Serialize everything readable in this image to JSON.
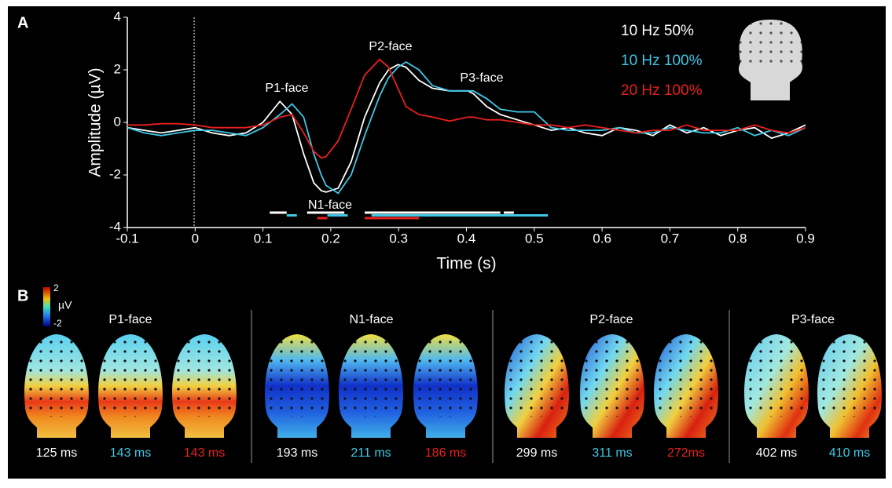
{
  "panel_a_label": "A",
  "chart_data": {
    "type": "line",
    "x_label": "Time (s)",
    "y_label": "Amplitude (µV)",
    "xlim": [
      -0.1,
      0.9
    ],
    "ylim": [
      -4,
      4
    ],
    "xticks": [
      -0.1,
      0,
      0.1,
      0.2,
      0.3,
      0.4,
      0.5,
      0.6,
      0.7,
      0.8,
      0.9
    ],
    "yticks": [
      -4,
      -2,
      0,
      2,
      4
    ],
    "annotations": [
      "P1-face",
      "N1-face",
      "P2-face",
      "P3-face"
    ],
    "x": [
      -0.1,
      -0.075,
      -0.05,
      -0.025,
      0,
      0.025,
      0.05,
      0.075,
      0.1,
      0.125,
      0.143,
      0.16,
      0.175,
      0.186,
      0.193,
      0.211,
      0.23,
      0.25,
      0.272,
      0.285,
      0.299,
      0.311,
      0.33,
      0.35,
      0.375,
      0.402,
      0.41,
      0.43,
      0.45,
      0.475,
      0.5,
      0.525,
      0.55,
      0.575,
      0.6,
      0.625,
      0.65,
      0.675,
      0.7,
      0.725,
      0.75,
      0.775,
      0.8,
      0.825,
      0.85,
      0.875,
      0.9
    ],
    "series": [
      {
        "name": "10 Hz 50%",
        "color": "#ffffff",
        "values": [
          -0.2,
          -0.3,
          -0.4,
          -0.3,
          -0.2,
          -0.4,
          -0.5,
          -0.4,
          0.0,
          0.8,
          0.3,
          -1.2,
          -2.3,
          -2.6,
          -2.65,
          -2.5,
          -1.5,
          0.2,
          1.5,
          2.0,
          2.2,
          2.1,
          1.6,
          1.3,
          1.2,
          1.2,
          1.1,
          0.6,
          0.3,
          0.1,
          -0.1,
          -0.3,
          -0.2,
          -0.4,
          -0.5,
          -0.2,
          -0.3,
          -0.5,
          -0.1,
          -0.4,
          -0.2,
          -0.5,
          -0.3,
          -0.2,
          -0.6,
          -0.4,
          -0.1
        ],
        "intervals": [
          [
            0.11,
            0.135
          ],
          [
            0.165,
            0.22
          ],
          [
            0.25,
            0.45
          ],
          [
            0.455,
            0.47
          ]
        ]
      },
      {
        "name": "10 Hz 100%",
        "color": "#3fc8e6",
        "values": [
          -0.2,
          -0.4,
          -0.5,
          -0.4,
          -0.3,
          -0.3,
          -0.4,
          -0.5,
          -0.2,
          0.3,
          0.7,
          0.2,
          -1.2,
          -2.0,
          -2.4,
          -2.7,
          -2.0,
          -0.5,
          1.0,
          1.7,
          2.1,
          2.3,
          2.0,
          1.4,
          1.2,
          1.2,
          1.2,
          0.9,
          0.5,
          0.4,
          0.4,
          -0.2,
          -0.3,
          -0.3,
          -0.3,
          -0.2,
          -0.4,
          -0.4,
          -0.2,
          -0.3,
          -0.4,
          -0.4,
          -0.2,
          -0.5,
          -0.3,
          -0.5,
          -0.2
        ],
        "intervals": [
          [
            0.135,
            0.15
          ],
          [
            0.195,
            0.225
          ],
          [
            0.26,
            0.52
          ]
        ]
      },
      {
        "name": "20 Hz 100%",
        "color": "#e8201c",
        "values": [
          -0.1,
          -0.1,
          -0.05,
          -0.05,
          -0.1,
          -0.2,
          -0.2,
          -0.2,
          -0.1,
          0.2,
          0.3,
          -0.4,
          -1.1,
          -1.35,
          -1.3,
          -0.7,
          0.5,
          1.8,
          2.4,
          2.1,
          1.3,
          0.6,
          0.3,
          0.2,
          0.05,
          0.2,
          0.2,
          0.1,
          0.1,
          0.0,
          -0.1,
          -0.1,
          -0.2,
          -0.1,
          -0.2,
          -0.3,
          -0.4,
          -0.3,
          -0.3,
          -0.1,
          -0.3,
          -0.3,
          -0.3,
          -0.1,
          -0.3,
          -0.4,
          -0.2
        ],
        "intervals": [
          [
            0.18,
            0.195
          ],
          [
            0.25,
            0.33
          ]
        ]
      }
    ]
  },
  "panel_b": {
    "label": "B",
    "colorbar": {
      "max": 2,
      "min": -2,
      "unit": "µV"
    },
    "groups": [
      {
        "title": "P1-face",
        "maps": [
          {
            "label": "125 ms",
            "color": "#ffffff"
          },
          {
            "label": "143 ms",
            "color": "#3fc8e6"
          },
          {
            "label": "143 ms",
            "color": "#e8201c"
          }
        ]
      },
      {
        "title": "N1-face",
        "maps": [
          {
            "label": "193 ms",
            "color": "#ffffff"
          },
          {
            "label": "211 ms",
            "color": "#3fc8e6"
          },
          {
            "label": "186 ms",
            "color": "#e8201c"
          }
        ]
      },
      {
        "title": "P2-face",
        "maps": [
          {
            "label": "299 ms",
            "color": "#ffffff"
          },
          {
            "label": "311 ms",
            "color": "#3fc8e6"
          },
          {
            "label": "272ms",
            "color": "#e8201c"
          }
        ]
      },
      {
        "title": "P3-face",
        "maps": [
          {
            "label": "402 ms",
            "color": "#ffffff"
          },
          {
            "label": "410 ms",
            "color": "#3fc8e6"
          }
        ]
      }
    ]
  }
}
